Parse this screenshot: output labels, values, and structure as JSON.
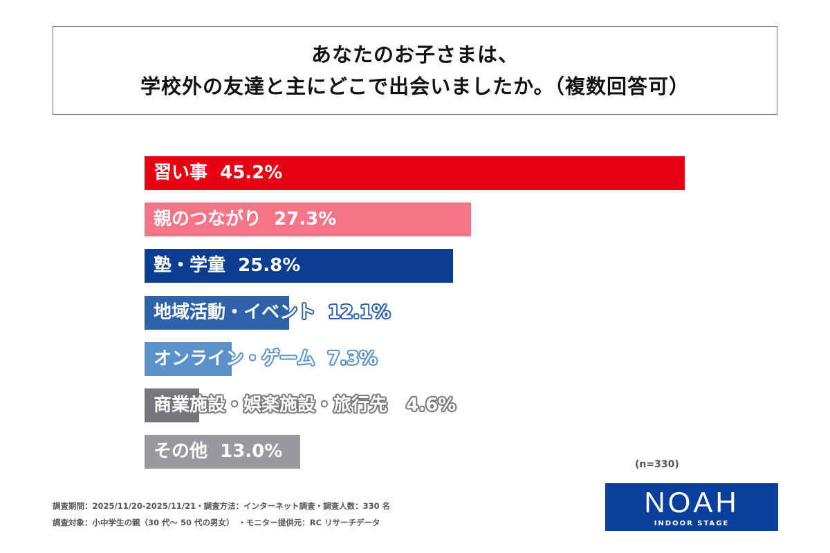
{
  "title": {
    "line1": "あなたのお子さまは、",
    "line2": "学校外の友達と主にどこで出会いましたか。（複数回答可）"
  },
  "chart_data": {
    "type": "bar",
    "orientation": "horizontal",
    "categories": [
      "習い事",
      "親のつながり",
      "塾・学童",
      "地域活動・イベント",
      "オンライン・ゲーム",
      "商業施設・娯楽施設・旅行先",
      "その他"
    ],
    "values": [
      45.2,
      27.3,
      25.8,
      12.1,
      7.3,
      4.6,
      13.0
    ],
    "labels": [
      "習い事  45.2%",
      "親のつながり  27.3%",
      "塾・学童  25.8%",
      "地域活動・イベント  12.1%",
      "オンライン・ゲーム  7.3%",
      "商業施設・娯楽施設・旅行先   4.6%",
      "その他  13.0%"
    ],
    "colors": [
      "#e60012",
      "#f47588",
      "#0b3d91",
      "#2e62a8",
      "#5b93c9",
      "#77767c",
      "#9a999f"
    ],
    "unit": "%",
    "grid": false
  },
  "sample": "(n=330)",
  "footer": {
    "line1": "調査期間：2025/11/20-2025/11/21・調査方法：インターネット調査・調査人数：330 名",
    "line2": "調査対象：小中学生の親（30 代～ 50 代の男女）　・モニター提供元：RC リサーチデータ"
  },
  "logo": {
    "main": "NOAH",
    "sub": "INDOOR STAGE"
  }
}
